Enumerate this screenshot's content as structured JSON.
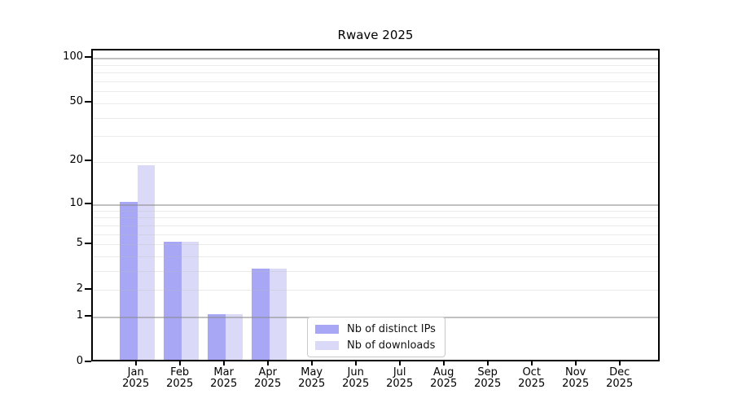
{
  "title": "Rwave 2025",
  "chart_data": {
    "type": "bar",
    "title": "Rwave 2025",
    "xlabel": "",
    "ylabel": "",
    "x_months": [
      "Jan",
      "Feb",
      "Mar",
      "Apr",
      "May",
      "Jun",
      "Jul",
      "Aug",
      "Sep",
      "Oct",
      "Nov",
      "Dec"
    ],
    "x_year": "2025",
    "series": [
      {
        "name": "Nb of distinct IPs",
        "color": "#a7a7f5",
        "values": [
          10,
          5,
          1,
          3,
          0,
          0,
          0,
          0,
          0,
          0,
          0,
          0
        ]
      },
      {
        "name": "Nb of downloads",
        "color": "#dadaf8",
        "values": [
          18,
          5,
          1,
          3,
          0,
          0,
          0,
          0,
          0,
          0,
          0,
          0
        ]
      }
    ],
    "y_axis": {
      "scale": "log1p",
      "range": [
        0,
        100
      ],
      "ticks": [
        0,
        1,
        2,
        5,
        10,
        20,
        50,
        100
      ],
      "minor_gridlines": [
        3,
        4,
        6,
        7,
        8,
        9,
        30,
        40,
        60,
        70,
        80,
        90
      ],
      "decade_gridlines": [
        1,
        10,
        100
      ]
    },
    "legend": {
      "position": "inside-bottom-center"
    },
    "colors": {
      "decade_gridline": "#c8c8c8",
      "minor_gridline": "#efefef",
      "spine": "#000000",
      "background": "#ffffff"
    }
  }
}
